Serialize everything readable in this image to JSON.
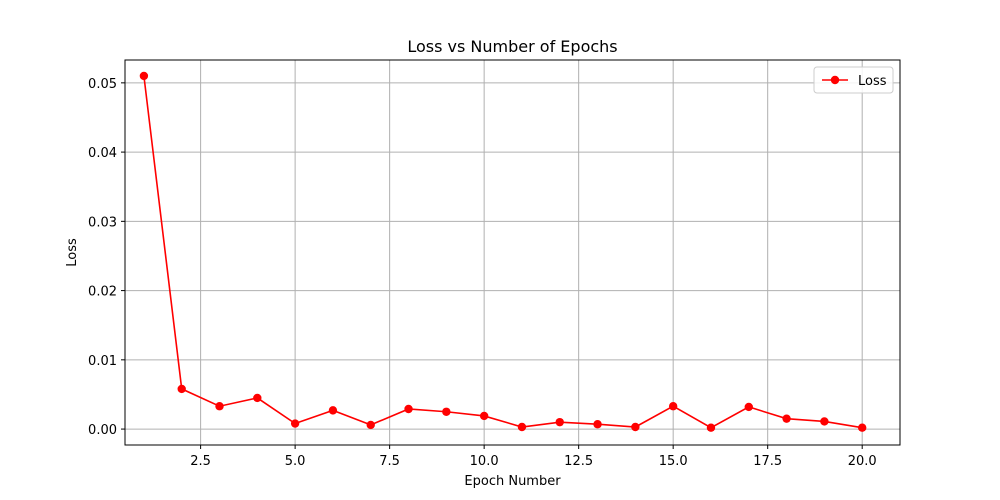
{
  "chart_data": {
    "type": "line",
    "title": "Loss vs Number of Epochs",
    "xlabel": "Epoch Number",
    "ylabel": "Loss",
    "xlim": [
      0.5,
      21.0
    ],
    "ylim": [
      -0.0023,
      0.0533
    ],
    "xticks": [
      2.5,
      5.0,
      7.5,
      10.0,
      12.5,
      15.0,
      17.5,
      20.0
    ],
    "xtick_labels": [
      "2.5",
      "5.0",
      "7.5",
      "10.0",
      "12.5",
      "15.0",
      "17.5",
      "20.0"
    ],
    "yticks": [
      0.0,
      0.01,
      0.02,
      0.03,
      0.04,
      0.05
    ],
    "ytick_labels": [
      "0.00",
      "0.01",
      "0.02",
      "0.03",
      "0.04",
      "0.05"
    ],
    "grid": true,
    "legend_position": "top-right",
    "series": [
      {
        "name": "Loss",
        "color": "#ff0000",
        "marker": "circle",
        "x": [
          1,
          2,
          3,
          4,
          5,
          6,
          7,
          8,
          9,
          10,
          11,
          12,
          13,
          14,
          15,
          16,
          17,
          18,
          19,
          20
        ],
        "values": [
          0.051,
          0.0058,
          0.0033,
          0.0045,
          0.0008,
          0.0027,
          0.0006,
          0.0029,
          0.0025,
          0.0019,
          0.0003,
          0.001,
          0.0007,
          0.0003,
          0.0033,
          0.0002,
          0.0032,
          0.0015,
          0.0011,
          0.0002
        ]
      }
    ]
  }
}
